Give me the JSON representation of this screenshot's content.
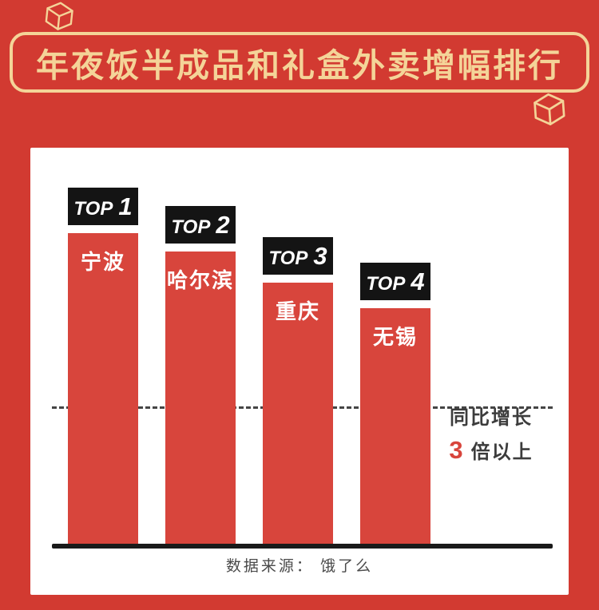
{
  "header": {
    "title": "年夜饭半成品和礼盒外卖增幅排行"
  },
  "chart_data": {
    "type": "bar",
    "title": "年夜饭半成品和礼盒外卖增幅排行",
    "categories": [
      "宁波",
      "哈尔滨",
      "重庆",
      "无锡"
    ],
    "ranks": [
      "TOP 1",
      "TOP 2",
      "TOP 3",
      "TOP 4"
    ],
    "values": [
      100,
      94,
      84,
      76
    ],
    "ylim": [
      0,
      100
    ],
    "grid": "off",
    "legend_position": "none",
    "threshold": {
      "label_line1": "同比增长",
      "value": "3",
      "label_line2": "倍以上"
    },
    "source": "数据来源：  饿了么"
  },
  "icons": [
    "gift-box-icon",
    "gift-box-icon"
  ],
  "colors": {
    "background": "#d23a31",
    "bar": "#d8453c",
    "gold": "#f4d498",
    "rank_badge_bg": "#141414",
    "rank_badge_text": "#ffffff",
    "threshold_value": "#d8453c",
    "axis": "#1a1a1a"
  }
}
